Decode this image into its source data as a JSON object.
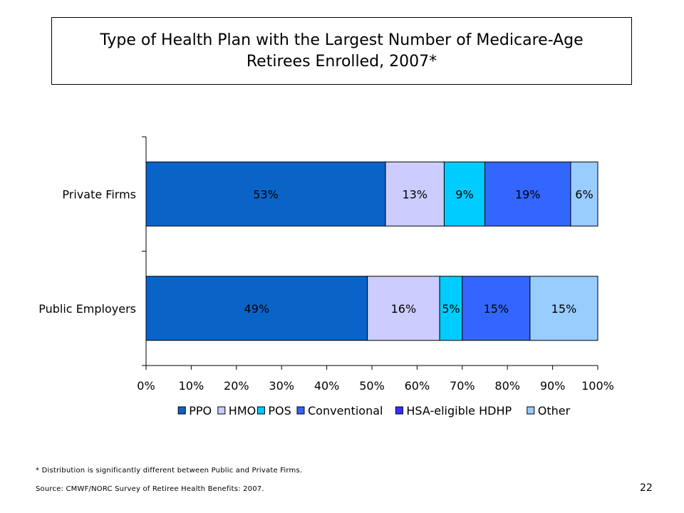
{
  "slide": {
    "title": "Type of Health Plan with the Largest Number of Medicare-Age\nRetirees Enrolled, 2007*",
    "footnote": "* Distribution is significantly different between Public and Private Firms.",
    "source": "Source: CMWF/NORC Survey of Retiree Health Benefits: 2007.",
    "page_number": "22"
  },
  "chart_data": {
    "type": "bar",
    "orientation": "horizontal",
    "stacked": true,
    "title": "",
    "xlabel": "",
    "ylabel": "",
    "categories": [
      "Private Firms",
      "Public Employers"
    ],
    "series": [
      {
        "name": "PPO",
        "values": [
          53,
          49
        ],
        "labels": [
          "53%",
          "49%"
        ],
        "color": "#0a64c8"
      },
      {
        "name": "HMO",
        "values": [
          13,
          16
        ],
        "labels": [
          "13%",
          "16%"
        ],
        "color": "#ccccff"
      },
      {
        "name": "POS",
        "values": [
          9,
          5
        ],
        "labels": [
          "9%",
          "5%"
        ],
        "color": "#00ccff"
      },
      {
        "name": "Conventional",
        "values": [
          19,
          15
        ],
        "labels": [
          "19%",
          "15%"
        ],
        "color": "#3366ff"
      },
      {
        "name": "HSA-eligible HDHP",
        "values": [
          0,
          0
        ],
        "labels": [
          "",
          ""
        ],
        "color": "#3333ff"
      },
      {
        "name": "Other",
        "values": [
          6,
          15
        ],
        "labels": [
          "6%",
          "15%"
        ],
        "color": "#99ccff"
      }
    ],
    "xlim": [
      0,
      100
    ],
    "xticks": [
      "0%",
      "10%",
      "20%",
      "30%",
      "40%",
      "50%",
      "60%",
      "70%",
      "80%",
      "90%",
      "100%"
    ],
    "grid": false,
    "legend_position": "bottom"
  }
}
